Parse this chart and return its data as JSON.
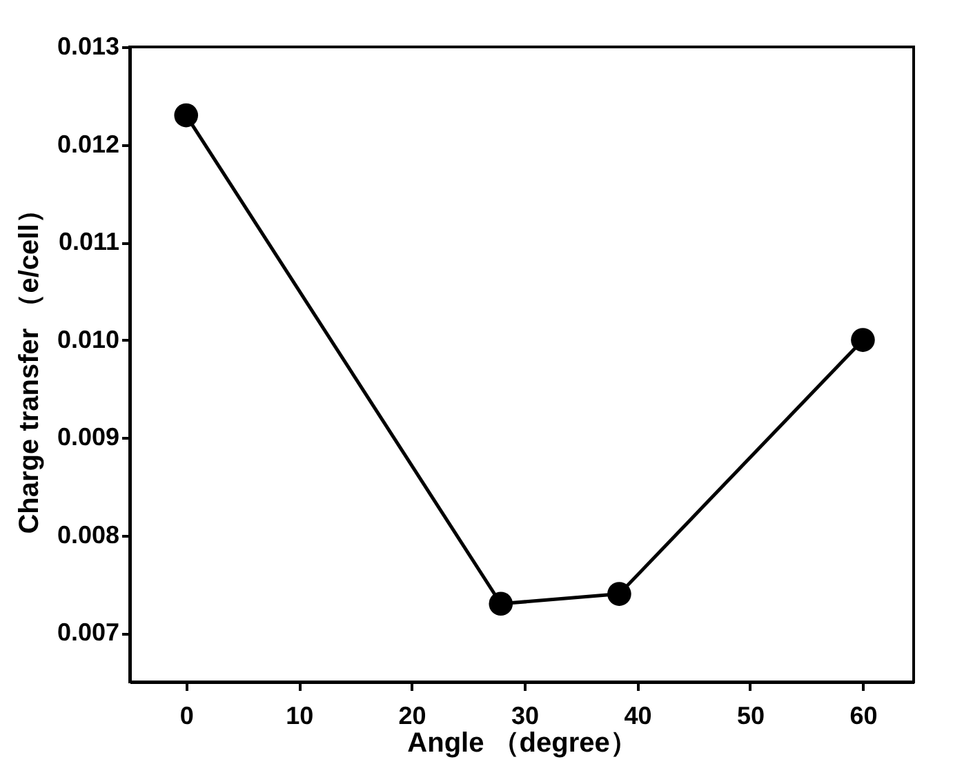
{
  "chart_data": {
    "type": "line",
    "xlabel": "Angle （degree）",
    "ylabel": "Charge transfer （e/cell）",
    "x": [
      0,
      27.9,
      38.4,
      60
    ],
    "series": [
      {
        "color": "#000000",
        "values": [
          0.0123,
          0.0073,
          0.0074,
          0.01
        ]
      }
    ],
    "xlim": [
      -5,
      64.5
    ],
    "xticks": [
      0,
      10,
      20,
      30,
      40,
      50,
      60
    ],
    "ylim": [
      0.0065,
      0.013
    ],
    "yticks": [
      0.007,
      0.008,
      0.009,
      {
        "value": 0.01,
        "label": "0.010"
      },
      0.011,
      0.012,
      0.013
    ],
    "marker": "circle",
    "line_style": "solid",
    "grid": false
  }
}
